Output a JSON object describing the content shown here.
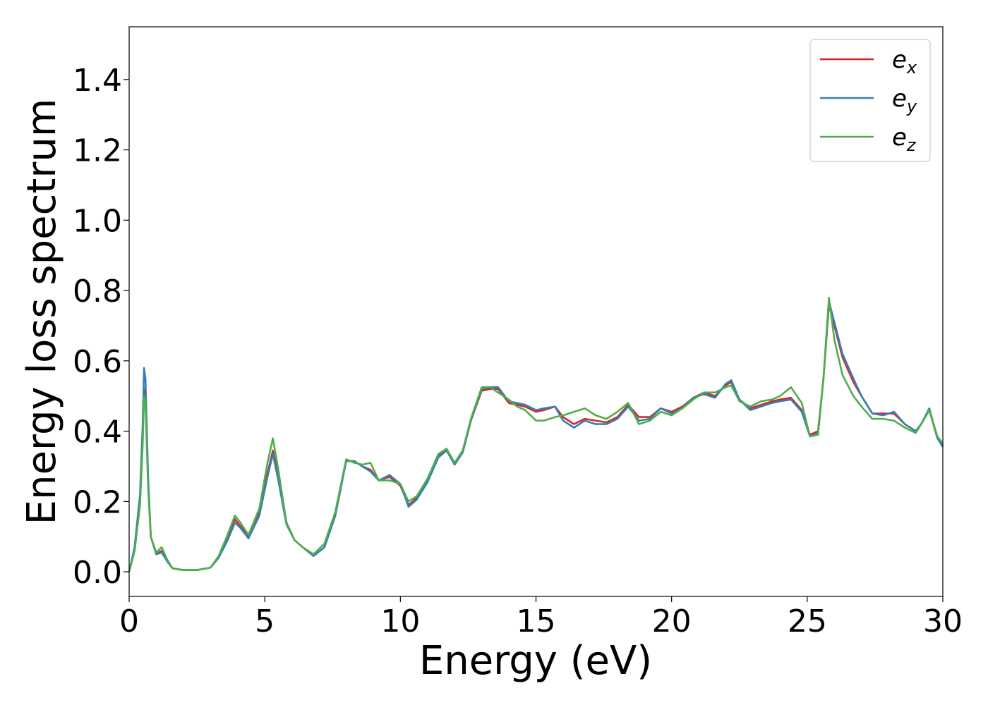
{
  "chart_data": {
    "type": "line",
    "title": "",
    "xlabel": "Energy (eV)",
    "ylabel": "Energy loss spectrum",
    "xlim": [
      0,
      30
    ],
    "ylim": [
      -0.07,
      1.55
    ],
    "xticks": [
      0,
      5,
      10,
      15,
      20,
      25,
      30
    ],
    "yticks": [
      0.0,
      0.2,
      0.4,
      0.6,
      0.8,
      1.0,
      1.2,
      1.4
    ],
    "xtick_labels": [
      "0",
      "5",
      "10",
      "15",
      "20",
      "25",
      "30"
    ],
    "ytick_labels": [
      "0.0",
      "0.2",
      "0.4",
      "0.6",
      "0.8",
      "1.0",
      "1.2",
      "1.4"
    ],
    "grid": false,
    "legend_position": "top-right",
    "series": [
      {
        "name": "e_x",
        "legend_base": "e",
        "legend_sub": "x",
        "color": "#d62728",
        "x": [
          0,
          0.2,
          0.4,
          0.5,
          0.55,
          0.6,
          0.7,
          0.8,
          1.0,
          1.2,
          1.4,
          1.6,
          2.0,
          2.5,
          3.0,
          3.3,
          3.6,
          3.9,
          4.1,
          4.4,
          4.8,
          5.1,
          5.3,
          5.5,
          5.8,
          6.1,
          6.4,
          6.8,
          7.2,
          7.6,
          8.0,
          8.3,
          8.6,
          8.9,
          9.2,
          9.6,
          10.0,
          10.3,
          10.6,
          11.0,
          11.4,
          11.7,
          12.0,
          12.3,
          12.6,
          13.0,
          13.3,
          13.6,
          14.0,
          14.3,
          14.6,
          15.0,
          15.3,
          15.7,
          16.0,
          16.4,
          16.8,
          17.2,
          17.6,
          18.0,
          18.4,
          18.8,
          19.2,
          19.6,
          20.0,
          20.4,
          20.8,
          21.2,
          21.6,
          22.0,
          22.2,
          22.5,
          22.9,
          23.3,
          23.7,
          24.0,
          24.4,
          24.8,
          25.1,
          25.4,
          25.6,
          25.8,
          26.0,
          26.3,
          26.7,
          27.0,
          27.4,
          27.8,
          28.2,
          28.6,
          29.0,
          29.2,
          29.5,
          29.8,
          30.0
        ],
        "y": [
          0.0,
          0.06,
          0.2,
          0.38,
          0.52,
          0.5,
          0.25,
          0.1,
          0.05,
          0.06,
          0.03,
          0.01,
          0.005,
          0.005,
          0.012,
          0.04,
          0.09,
          0.15,
          0.13,
          0.1,
          0.17,
          0.28,
          0.345,
          0.27,
          0.14,
          0.09,
          0.07,
          0.045,
          0.07,
          0.16,
          0.315,
          0.315,
          0.3,
          0.29,
          0.26,
          0.27,
          0.245,
          0.19,
          0.21,
          0.26,
          0.33,
          0.35,
          0.305,
          0.34,
          0.43,
          0.515,
          0.52,
          0.52,
          0.48,
          0.475,
          0.47,
          0.455,
          0.46,
          0.47,
          0.44,
          0.42,
          0.435,
          0.43,
          0.425,
          0.44,
          0.475,
          0.44,
          0.44,
          0.465,
          0.455,
          0.47,
          0.495,
          0.51,
          0.5,
          0.53,
          0.54,
          0.49,
          0.465,
          0.475,
          0.485,
          0.49,
          0.495,
          0.46,
          0.39,
          0.4,
          0.55,
          0.76,
          0.7,
          0.61,
          0.54,
          0.5,
          0.45,
          0.45,
          0.45,
          0.42,
          0.4,
          0.42,
          0.46,
          0.38,
          0.36
        ]
      },
      {
        "name": "e_y",
        "legend_base": "e",
        "legend_sub": "y",
        "color": "#377eb8",
        "x": [
          0,
          0.2,
          0.4,
          0.5,
          0.55,
          0.6,
          0.7,
          0.8,
          1.0,
          1.2,
          1.4,
          1.6,
          2.0,
          2.5,
          3.0,
          3.3,
          3.6,
          3.9,
          4.1,
          4.4,
          4.8,
          5.1,
          5.3,
          5.5,
          5.8,
          6.1,
          6.4,
          6.8,
          7.2,
          7.6,
          8.0,
          8.3,
          8.6,
          8.9,
          9.2,
          9.6,
          10.0,
          10.3,
          10.6,
          11.0,
          11.4,
          11.7,
          12.0,
          12.3,
          12.6,
          13.0,
          13.3,
          13.6,
          14.0,
          14.3,
          14.6,
          15.0,
          15.3,
          15.7,
          16.0,
          16.4,
          16.8,
          17.2,
          17.6,
          18.0,
          18.4,
          18.8,
          19.2,
          19.6,
          20.0,
          20.4,
          20.8,
          21.2,
          21.6,
          22.0,
          22.2,
          22.5,
          22.9,
          23.3,
          23.7,
          24.0,
          24.4,
          24.8,
          25.1,
          25.4,
          25.6,
          25.8,
          26.0,
          26.3,
          26.7,
          27.0,
          27.4,
          27.8,
          28.2,
          28.6,
          29.0,
          29.2,
          29.5,
          29.8,
          30.0
        ],
        "y": [
          0.0,
          0.07,
          0.22,
          0.42,
          0.58,
          0.55,
          0.27,
          0.1,
          0.05,
          0.055,
          0.03,
          0.01,
          0.005,
          0.005,
          0.012,
          0.04,
          0.085,
          0.14,
          0.125,
          0.095,
          0.16,
          0.27,
          0.335,
          0.26,
          0.135,
          0.09,
          0.07,
          0.045,
          0.07,
          0.16,
          0.315,
          0.315,
          0.3,
          0.285,
          0.26,
          0.275,
          0.25,
          0.185,
          0.205,
          0.255,
          0.325,
          0.345,
          0.305,
          0.34,
          0.43,
          0.52,
          0.525,
          0.525,
          0.485,
          0.48,
          0.475,
          0.46,
          0.465,
          0.47,
          0.43,
          0.41,
          0.43,
          0.42,
          0.42,
          0.435,
          0.47,
          0.43,
          0.435,
          0.465,
          0.45,
          0.465,
          0.495,
          0.505,
          0.495,
          0.535,
          0.545,
          0.49,
          0.46,
          0.47,
          0.48,
          0.485,
          0.49,
          0.455,
          0.385,
          0.395,
          0.55,
          0.77,
          0.71,
          0.62,
          0.55,
          0.5,
          0.45,
          0.445,
          0.455,
          0.42,
          0.4,
          0.42,
          0.465,
          0.38,
          0.355
        ]
      },
      {
        "name": "e_z",
        "legend_base": "e",
        "legend_sub": "z",
        "color": "#4daf4a",
        "x": [
          0,
          0.2,
          0.4,
          0.5,
          0.55,
          0.6,
          0.7,
          0.8,
          1.0,
          1.2,
          1.4,
          1.6,
          2.0,
          2.5,
          3.0,
          3.3,
          3.6,
          3.9,
          4.1,
          4.4,
          4.8,
          5.1,
          5.3,
          5.5,
          5.8,
          6.1,
          6.4,
          6.8,
          7.2,
          7.6,
          8.0,
          8.3,
          8.6,
          8.9,
          9.2,
          9.6,
          10.0,
          10.3,
          10.6,
          11.0,
          11.4,
          11.7,
          12.0,
          12.3,
          12.6,
          13.0,
          13.3,
          13.6,
          14.0,
          14.3,
          14.6,
          15.0,
          15.3,
          15.7,
          16.0,
          16.4,
          16.8,
          17.2,
          17.6,
          18.0,
          18.4,
          18.8,
          19.2,
          19.6,
          20.0,
          20.4,
          20.8,
          21.2,
          21.6,
          22.0,
          22.2,
          22.5,
          22.9,
          23.3,
          23.7,
          24.0,
          24.4,
          24.8,
          25.1,
          25.4,
          25.6,
          25.8,
          26.0,
          26.3,
          26.7,
          27.0,
          27.4,
          27.8,
          28.2,
          28.6,
          29.0,
          29.2,
          29.5,
          29.8,
          30.0
        ],
        "y": [
          0.0,
          0.06,
          0.19,
          0.36,
          0.5,
          0.48,
          0.24,
          0.1,
          0.055,
          0.07,
          0.035,
          0.01,
          0.005,
          0.005,
          0.012,
          0.045,
          0.1,
          0.16,
          0.14,
          0.105,
          0.18,
          0.31,
          0.38,
          0.29,
          0.14,
          0.09,
          0.07,
          0.05,
          0.08,
          0.17,
          0.32,
          0.31,
          0.305,
          0.31,
          0.26,
          0.26,
          0.25,
          0.2,
          0.215,
          0.265,
          0.335,
          0.35,
          0.31,
          0.345,
          0.435,
          0.525,
          0.525,
          0.51,
          0.49,
          0.47,
          0.46,
          0.43,
          0.43,
          0.44,
          0.445,
          0.455,
          0.465,
          0.445,
          0.435,
          0.455,
          0.48,
          0.42,
          0.43,
          0.455,
          0.445,
          0.465,
          0.49,
          0.51,
          0.51,
          0.525,
          0.53,
          0.485,
          0.47,
          0.485,
          0.49,
          0.5,
          0.525,
          0.48,
          0.385,
          0.39,
          0.55,
          0.78,
          0.66,
          0.56,
          0.5,
          0.47,
          0.435,
          0.435,
          0.43,
          0.41,
          0.395,
          0.42,
          0.46,
          0.385,
          0.365
        ]
      }
    ]
  }
}
